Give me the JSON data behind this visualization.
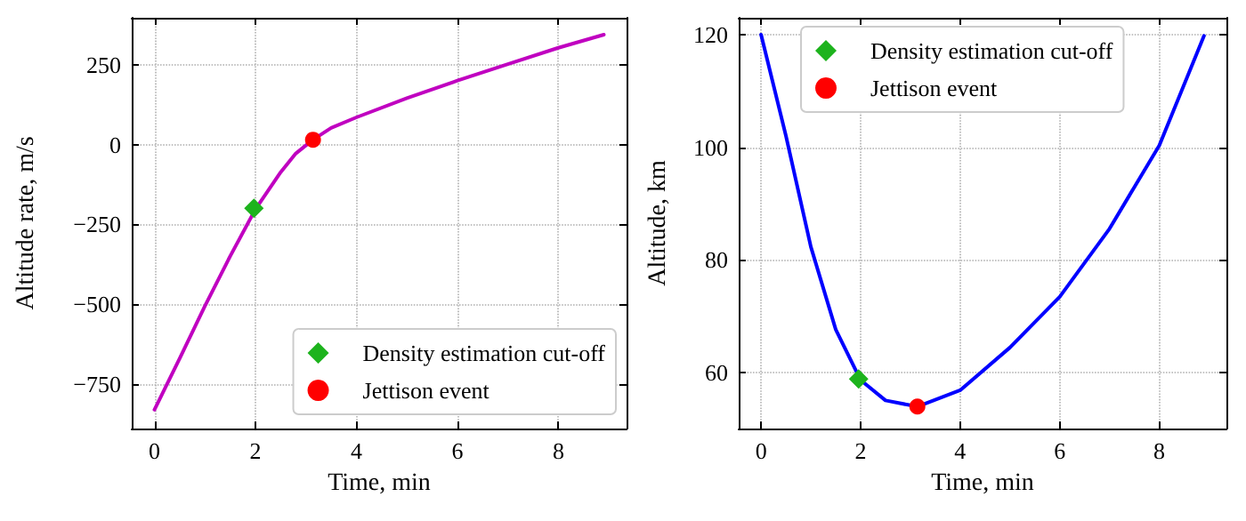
{
  "chart_data": [
    {
      "type": "line",
      "xlabel": "Time, min",
      "ylabel": "Altitude rate, m/s",
      "xlim": [
        -0.45,
        9.35
      ],
      "ylim": [
        -890,
        397
      ],
      "xticks": [
        0,
        2,
        4,
        6,
        8
      ],
      "yticks": [
        -750,
        -500,
        -250,
        0,
        250
      ],
      "grid": true,
      "legend": "bottom right",
      "series": [
        {
          "color": "#c000c0",
          "marker": "none",
          "line_style": "solid",
          "x": [
            0,
            0.5,
            1,
            1.5,
            2,
            2.5,
            2.8,
            3.14,
            3.5,
            4,
            5,
            6,
            7,
            8,
            8.9
          ],
          "values": [
            -831,
            -670,
            -506,
            -350,
            -203,
            -87,
            -28,
            15,
            52,
            85,
            145,
            200,
            252,
            303,
            344
          ]
        },
        {
          "type": "scatter",
          "name": "Density estimation cut-off",
          "color": "#1db31d",
          "marker": "diamond",
          "x": [
            1.97
          ],
          "values": [
            -200
          ]
        },
        {
          "type": "scatter",
          "name": "Jettison event",
          "color": "#ff0000",
          "marker": "circle",
          "x": [
            3.14
          ],
          "values": [
            15
          ]
        }
      ]
    },
    {
      "type": "line",
      "xlabel": "Time, min",
      "ylabel": "Altitude, km",
      "xlim": [
        -0.45,
        9.35
      ],
      "ylim": [
        50,
        123
      ],
      "xticks": [
        0,
        2,
        4,
        6,
        8
      ],
      "yticks": [
        60,
        80,
        100,
        120
      ],
      "grid": true,
      "legend": "top",
      "series": [
        {
          "color": "#0000ff",
          "marker": "none",
          "line_style": "solid",
          "x": [
            0,
            0.5,
            1,
            1.5,
            2,
            2.5,
            3.14,
            4,
            5,
            6,
            7,
            8,
            8.9
          ],
          "values": [
            120,
            102,
            82.3,
            67.6,
            58.6,
            55,
            53.9,
            56.8,
            64.4,
            73.4,
            85.5,
            100.3,
            119.8
          ]
        },
        {
          "type": "scatter",
          "name": "Density estimation cut-off",
          "color": "#1db31d",
          "marker": "diamond",
          "x": [
            1.96
          ],
          "values": [
            58.8
          ]
        },
        {
          "type": "scatter",
          "name": "Jettison event",
          "color": "#ff0000",
          "marker": "circle",
          "x": [
            3.14
          ],
          "values": [
            53.9
          ]
        }
      ]
    }
  ]
}
